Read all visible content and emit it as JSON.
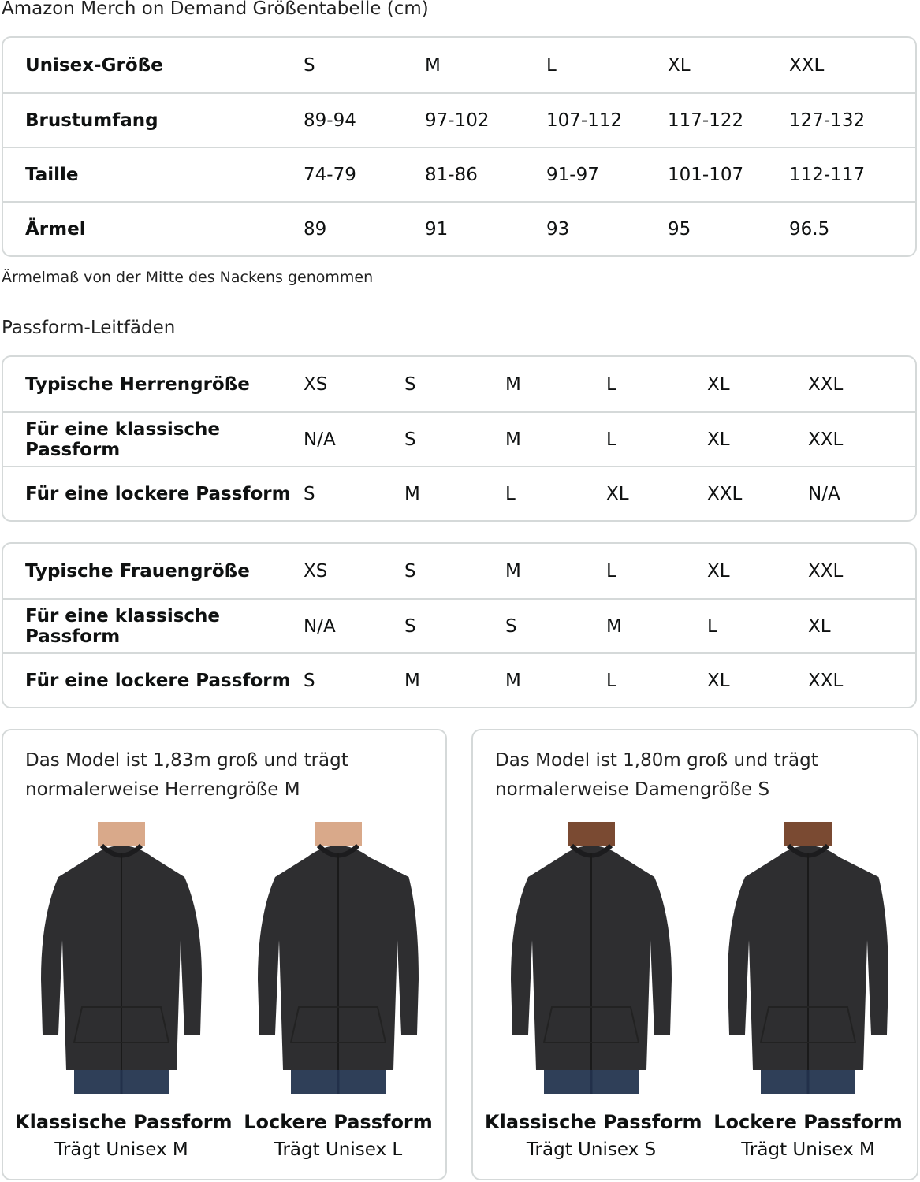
{
  "title": "Amazon Merch on Demand Größentabelle (cm)",
  "size_table": {
    "rows": [
      {
        "label": "Unisex-Größe",
        "values": [
          "S",
          "M",
          "L",
          "XL",
          "XXL"
        ]
      },
      {
        "label": "Brustumfang",
        "values": [
          "89-94",
          "97-102",
          "107-112",
          "117-122",
          "127-132"
        ]
      },
      {
        "label": "Taille",
        "values": [
          "74-79",
          "81-86",
          "91-97",
          "101-107",
          "112-117"
        ]
      },
      {
        "label": "Ärmel",
        "values": [
          "89",
          "91",
          "93",
          "95",
          "96.5"
        ]
      }
    ]
  },
  "note": "Ärmelmaß von der Mitte des Nackens genommen",
  "fit_heading": "Passform-Leitfäden",
  "men_table": {
    "rows": [
      {
        "label": "Typische Herrengröße",
        "values": [
          "XS",
          "S",
          "M",
          "L",
          "XL",
          "XXL"
        ]
      },
      {
        "label": "Für eine klassische Passform",
        "values": [
          "N/A",
          "S",
          "M",
          "L",
          "XL",
          "XXL"
        ]
      },
      {
        "label": "Für eine lockere Passform",
        "values": [
          "S",
          "M",
          "L",
          "XL",
          "XXL",
          "N/A"
        ]
      }
    ]
  },
  "women_table": {
    "rows": [
      {
        "label": "Typische Frauengröße",
        "values": [
          "XS",
          "S",
          "M",
          "L",
          "XL",
          "XXL"
        ]
      },
      {
        "label": "Für eine klassische Passform",
        "values": [
          "N/A",
          "S",
          "S",
          "M",
          "L",
          "XL"
        ]
      },
      {
        "label": "Für eine lockere Passform",
        "values": [
          "S",
          "M",
          "M",
          "L",
          "XL",
          "XXL"
        ]
      }
    ]
  },
  "cards": [
    {
      "desc": "Das Model ist 1,83m groß und trägt normalerweise Herrengröße M",
      "figures": [
        {
          "title": "Klassische Passform",
          "sub": "Trägt Unisex M",
          "skin": "#d9a98a"
        },
        {
          "title": "Lockere Passform",
          "sub": "Trägt Unisex L",
          "skin": "#d9a98a"
        }
      ]
    },
    {
      "desc": "Das Model ist 1,80m groß und trägt normalerweise Damengröße S",
      "figures": [
        {
          "title": "Klassische Passform",
          "sub": "Trägt Unisex S",
          "skin": "#7a4a32"
        },
        {
          "title": "Lockere Passform",
          "sub": "Trägt Unisex M",
          "skin": "#7a4a32"
        }
      ]
    }
  ]
}
